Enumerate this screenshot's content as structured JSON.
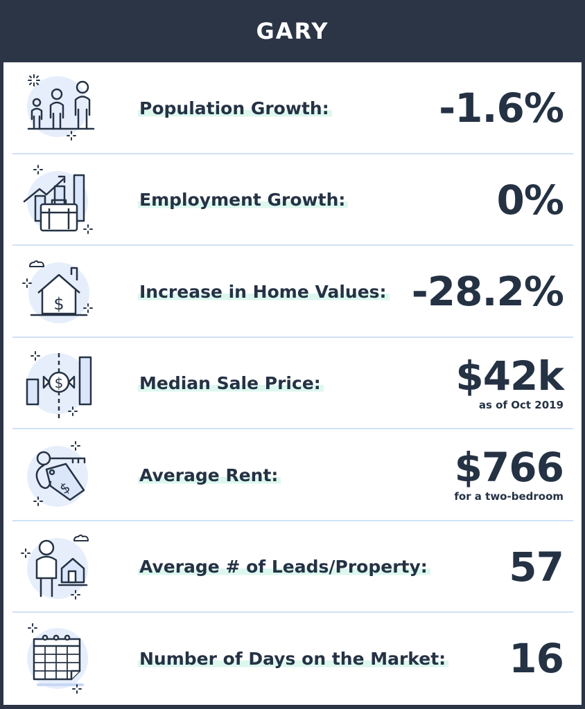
{
  "header": {
    "title": "GARY"
  },
  "rows": [
    {
      "label": "Population Growth:",
      "value": "-1.6%",
      "note": ""
    },
    {
      "label": "Employment Growth:",
      "value": "0%",
      "note": ""
    },
    {
      "label": "Increase in Home Values:",
      "value": "-28.2%",
      "note": ""
    },
    {
      "label": "Median Sale Price:",
      "value": "$42k",
      "note": "as  of Oct 2019"
    },
    {
      "label": "Average Rent:",
      "value": "$766",
      "note": "for a two-bedroom"
    },
    {
      "label": "Average # of Leads/Property:",
      "value": "57",
      "note": ""
    },
    {
      "label": "Number of Days on the Market:",
      "value": "16",
      "note": ""
    }
  ],
  "icons": [
    "people-icon",
    "briefcase-chart-icon",
    "house-dollar-icon",
    "exchange-chart-icon",
    "key-tag-icon",
    "person-house-icon",
    "calendar-icon"
  ],
  "colors": {
    "header_bg": "#2b3546",
    "text": "#253244",
    "highlight": "#dcf7ee",
    "icon_blue": "#e6eefc",
    "icon_stroke": "#253244",
    "divider": "#cfe1f6"
  }
}
